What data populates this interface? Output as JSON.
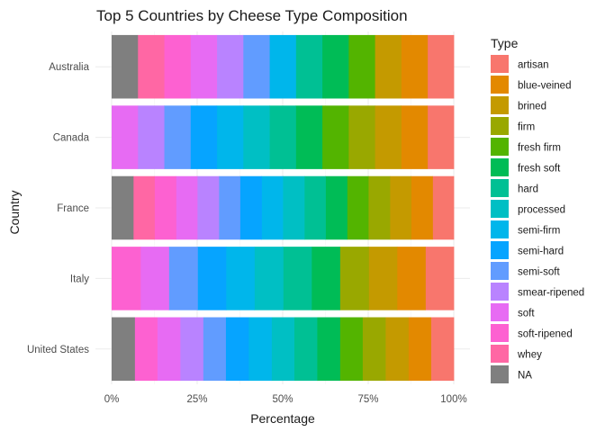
{
  "chart_data": {
    "type": "bar",
    "orientation": "horizontal",
    "stacked": "percent",
    "title": "Top 5 Countries by Cheese Type Composition",
    "xlabel": "Percentage",
    "ylabel": "Country",
    "xlim": [
      0,
      1
    ],
    "x_ticks": [
      "0%",
      "25%",
      "50%",
      "75%",
      "100%"
    ],
    "grid": true,
    "legend_title": "Type",
    "legend_position": "right",
    "legend": [
      {
        "name": "artisan",
        "color": "#F8766D"
      },
      {
        "name": "blue-veined",
        "color": "#E38900"
      },
      {
        "name": "brined",
        "color": "#C49A00"
      },
      {
        "name": "firm",
        "color": "#99A800"
      },
      {
        "name": "fresh firm",
        "color": "#53B400"
      },
      {
        "name": "fresh soft",
        "color": "#00BC56"
      },
      {
        "name": "hard",
        "color": "#00C094"
      },
      {
        "name": "processed",
        "color": "#00BFC4"
      },
      {
        "name": "semi-firm",
        "color": "#00B6EB"
      },
      {
        "name": "semi-hard",
        "color": "#06A4FF"
      },
      {
        "name": "semi-soft",
        "color": "#619CFF"
      },
      {
        "name": "smear-ripened",
        "color": "#B983FF"
      },
      {
        "name": "soft",
        "color": "#E76BF3"
      },
      {
        "name": "soft-ripened",
        "color": "#FD61D1"
      },
      {
        "name": "whey",
        "color": "#FF67A4"
      },
      {
        "name": "NA",
        "color": "#7F7F7F"
      }
    ],
    "categories": [
      "Australia",
      "Canada",
      "France",
      "Italy",
      "United States"
    ],
    "bars": [
      {
        "country": "Australia",
        "segments": [
          {
            "type": "artisan",
            "value": 0.077
          },
          {
            "type": "blue-veined",
            "value": 0.077
          },
          {
            "type": "brined",
            "value": 0.077
          },
          {
            "type": "fresh firm",
            "value": 0.077
          },
          {
            "type": "fresh soft",
            "value": 0.077
          },
          {
            "type": "hard",
            "value": 0.077
          },
          {
            "type": "semi-firm",
            "value": 0.077
          },
          {
            "type": "semi-soft",
            "value": 0.077
          },
          {
            "type": "smear-ripened",
            "value": 0.077
          },
          {
            "type": "soft",
            "value": 0.077
          },
          {
            "type": "soft-ripened",
            "value": 0.077
          },
          {
            "type": "whey",
            "value": 0.077
          },
          {
            "type": "NA",
            "value": 0.076
          }
        ]
      },
      {
        "country": "Canada",
        "segments": [
          {
            "type": "artisan",
            "value": 0.077
          },
          {
            "type": "blue-veined",
            "value": 0.077
          },
          {
            "type": "brined",
            "value": 0.077
          },
          {
            "type": "firm",
            "value": 0.077
          },
          {
            "type": "fresh firm",
            "value": 0.077
          },
          {
            "type": "fresh soft",
            "value": 0.077
          },
          {
            "type": "hard",
            "value": 0.077
          },
          {
            "type": "processed",
            "value": 0.077
          },
          {
            "type": "semi-firm",
            "value": 0.077
          },
          {
            "type": "semi-hard",
            "value": 0.077
          },
          {
            "type": "semi-soft",
            "value": 0.077
          },
          {
            "type": "smear-ripened",
            "value": 0.077
          },
          {
            "type": "soft",
            "value": 0.076
          }
        ]
      },
      {
        "country": "France",
        "segments": [
          {
            "type": "artisan",
            "value": 0.062
          },
          {
            "type": "blue-veined",
            "value": 0.063
          },
          {
            "type": "brined",
            "value": 0.062
          },
          {
            "type": "firm",
            "value": 0.063
          },
          {
            "type": "fresh firm",
            "value": 0.062
          },
          {
            "type": "fresh soft",
            "value": 0.063
          },
          {
            "type": "hard",
            "value": 0.062
          },
          {
            "type": "processed",
            "value": 0.063
          },
          {
            "type": "semi-firm",
            "value": 0.062
          },
          {
            "type": "semi-hard",
            "value": 0.063
          },
          {
            "type": "semi-soft",
            "value": 0.062
          },
          {
            "type": "smear-ripened",
            "value": 0.063
          },
          {
            "type": "soft",
            "value": 0.062
          },
          {
            "type": "soft-ripened",
            "value": 0.063
          },
          {
            "type": "whey",
            "value": 0.062
          },
          {
            "type": "NA",
            "value": 0.063
          }
        ]
      },
      {
        "country": "Italy",
        "segments": [
          {
            "type": "artisan",
            "value": 0.083
          },
          {
            "type": "blue-veined",
            "value": 0.083
          },
          {
            "type": "brined",
            "value": 0.083
          },
          {
            "type": "firm",
            "value": 0.084
          },
          {
            "type": "fresh soft",
            "value": 0.083
          },
          {
            "type": "hard",
            "value": 0.083
          },
          {
            "type": "processed",
            "value": 0.084
          },
          {
            "type": "semi-firm",
            "value": 0.083
          },
          {
            "type": "semi-hard",
            "value": 0.083
          },
          {
            "type": "semi-soft",
            "value": 0.084
          },
          {
            "type": "soft",
            "value": 0.083
          },
          {
            "type": "soft-ripened",
            "value": 0.084
          }
        ]
      },
      {
        "country": "United States",
        "segments": [
          {
            "type": "artisan",
            "value": 0.067
          },
          {
            "type": "blue-veined",
            "value": 0.066
          },
          {
            "type": "brined",
            "value": 0.067
          },
          {
            "type": "firm",
            "value": 0.067
          },
          {
            "type": "fresh firm",
            "value": 0.066
          },
          {
            "type": "fresh soft",
            "value": 0.067
          },
          {
            "type": "hard",
            "value": 0.067
          },
          {
            "type": "processed",
            "value": 0.066
          },
          {
            "type": "semi-firm",
            "value": 0.067
          },
          {
            "type": "semi-hard",
            "value": 0.067
          },
          {
            "type": "semi-soft",
            "value": 0.066
          },
          {
            "type": "smear-ripened",
            "value": 0.067
          },
          {
            "type": "soft",
            "value": 0.067
          },
          {
            "type": "soft-ripened",
            "value": 0.066
          },
          {
            "type": "NA",
            "value": 0.067
          }
        ]
      }
    ]
  }
}
